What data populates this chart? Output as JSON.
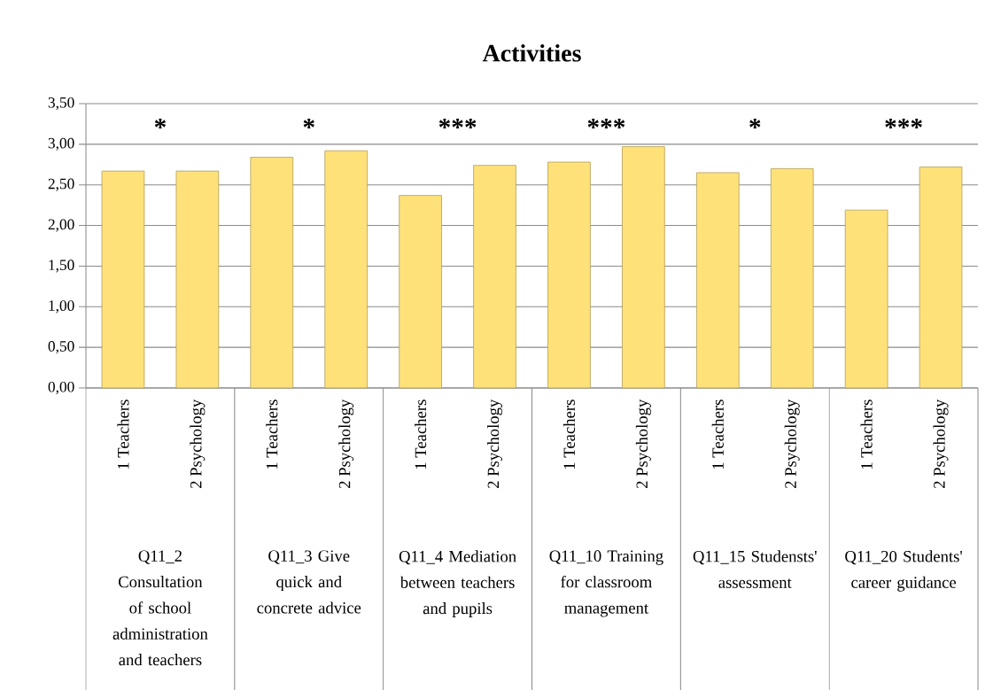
{
  "chart_data": {
    "type": "bar",
    "title": "Activities",
    "categories": [
      "1 Teachers",
      "2 Psychology",
      "1 Teachers",
      "2 Psychology",
      "1 Teachers",
      "2 Psychology",
      "1 Teachers",
      "2 Psychology",
      "1 Teachers",
      "2 Psychology",
      "1 Teachers",
      "2 Psychology"
    ],
    "values": [
      2.67,
      2.67,
      2.84,
      2.92,
      2.37,
      2.74,
      2.78,
      2.97,
      2.65,
      2.7,
      2.19,
      2.72
    ],
    "color": "#ffe17a",
    "ylim": [
      0,
      3.5
    ],
    "yticks": [
      {
        "value": 0,
        "label": "0,00"
      },
      {
        "value": 0.5,
        "label": "0,50"
      },
      {
        "value": 1,
        "label": "1,00"
      },
      {
        "value": 1.5,
        "label": "1,50"
      },
      {
        "value": 2,
        "label": "2,00"
      },
      {
        "value": 2.5,
        "label": "2,50"
      },
      {
        "value": 3,
        "label": "3,00"
      },
      {
        "value": 3.5,
        "label": "3,50"
      }
    ],
    "grid": "y",
    "annotations": [
      "Q11_2 Consultation of school administration and teachers",
      "Q11_3 Give quick and concrete advice",
      "Q11_4 Mediation between teachers and pupils",
      "Q11_10 Training for classroom management",
      "Q11_15 Studensts' assessment",
      "Q11_20 Students' career guidance",
      "*",
      "*",
      "***",
      "***",
      "*",
      "***"
    ]
  }
}
